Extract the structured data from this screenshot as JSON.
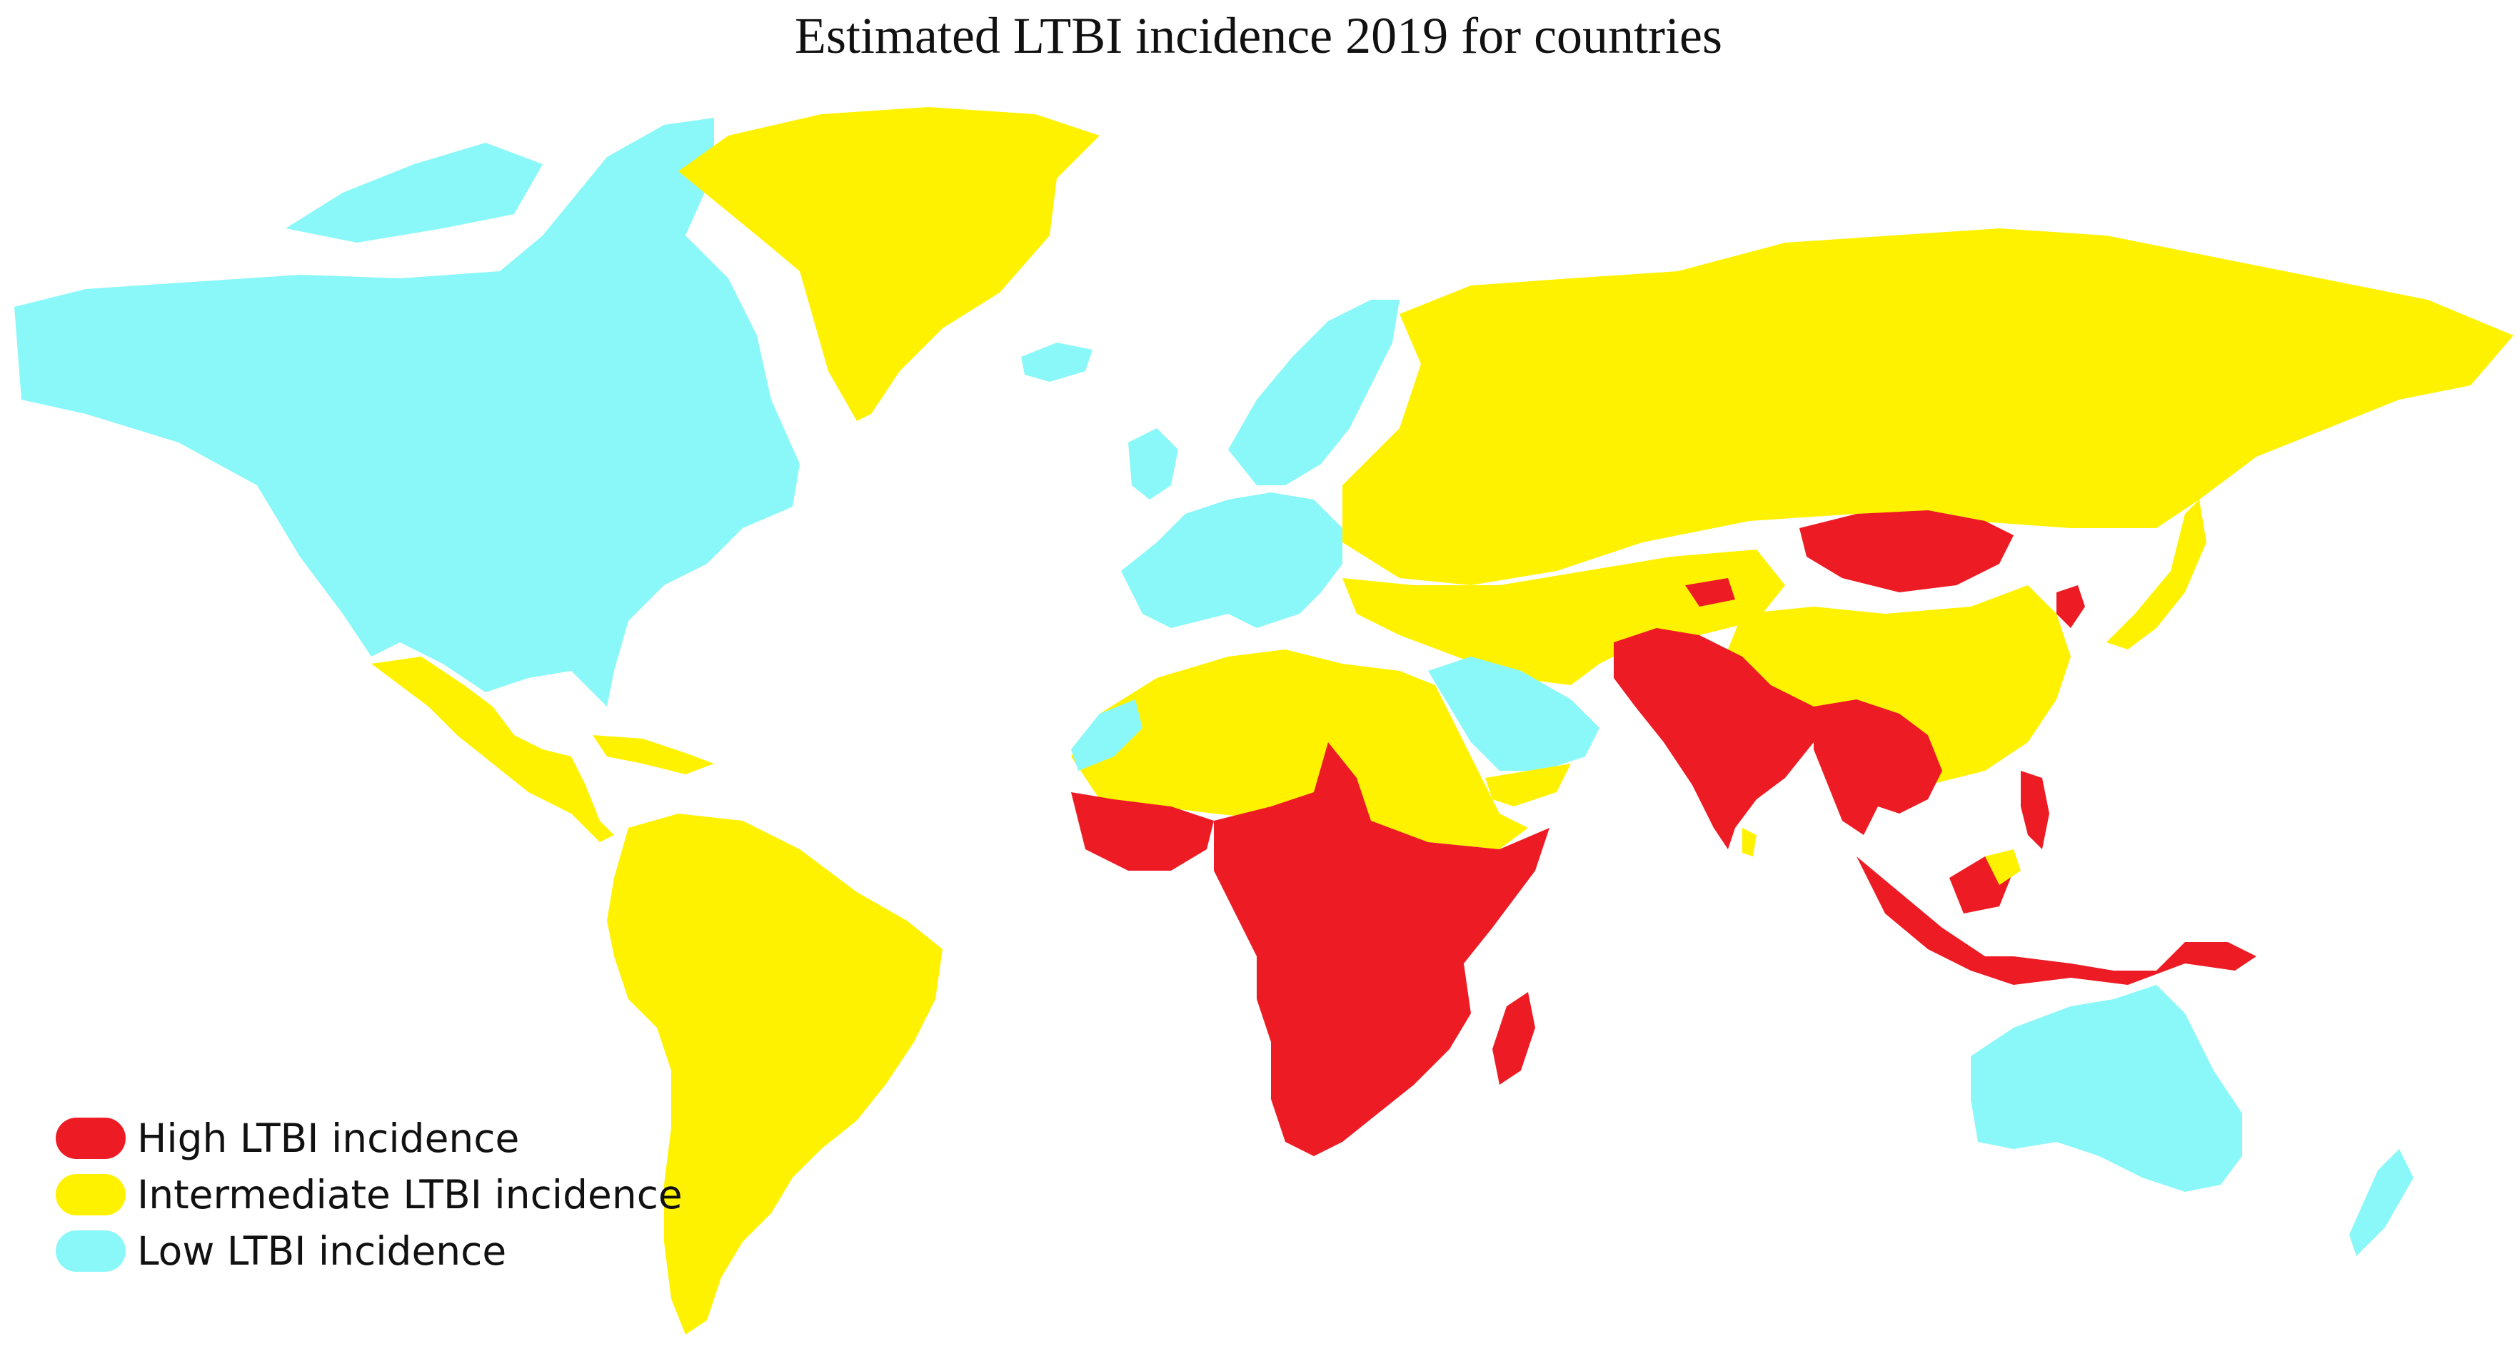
{
  "title": "Estimated LTBI incidence 2019 for countries",
  "palette": {
    "high": "#ED1C24",
    "intermediate": "#FFF200",
    "low": "#8AF8F8",
    "ocean": "#FFFFFF"
  },
  "legend": [
    {
      "label": "High LTBI incidence",
      "color": "#ED1C24"
    },
    {
      "label": "Intermediate LTBI incidence",
      "color": "#FFF200"
    },
    {
      "label": "Low LTBI incidence",
      "color": "#8AF8F8"
    }
  ],
  "regions": [
    {
      "name": "North America",
      "level": "low"
    },
    {
      "name": "Greenland",
      "level": "intermediate"
    },
    {
      "name": "Iceland",
      "level": "low"
    },
    {
      "name": "Mexico and Central America",
      "level": "intermediate"
    },
    {
      "name": "Caribbean",
      "level": "intermediate"
    },
    {
      "name": "South America",
      "level": "intermediate"
    },
    {
      "name": "Western Europe",
      "level": "low"
    },
    {
      "name": "Scandinavia",
      "level": "low"
    },
    {
      "name": "Russia",
      "level": "intermediate"
    },
    {
      "name": "Central Asia",
      "level": "intermediate"
    },
    {
      "name": "China",
      "level": "intermediate"
    },
    {
      "name": "Mongolia",
      "level": "high"
    },
    {
      "name": "North Korea",
      "level": "high"
    },
    {
      "name": "Japan",
      "level": "intermediate"
    },
    {
      "name": "North Africa",
      "level": "intermediate"
    },
    {
      "name": "Morocco",
      "level": "low"
    },
    {
      "name": "West Africa",
      "level": "high"
    },
    {
      "name": "Sub-Saharan Africa",
      "level": "high"
    },
    {
      "name": "Madagascar",
      "level": "high"
    },
    {
      "name": "Arabian Peninsula",
      "level": "low"
    },
    {
      "name": "Yemen and Oman",
      "level": "intermediate"
    },
    {
      "name": "Afghanistan, Pakistan and India",
      "level": "high"
    },
    {
      "name": "Sri Lanka",
      "level": "intermediate"
    },
    {
      "name": "Southeast Asia",
      "level": "high"
    },
    {
      "name": "Indonesia and New Guinea",
      "level": "high"
    },
    {
      "name": "Philippines",
      "level": "high"
    },
    {
      "name": "Malaysia",
      "level": "intermediate"
    },
    {
      "name": "Australia",
      "level": "low"
    },
    {
      "name": "New Zealand",
      "level": "low"
    }
  ]
}
